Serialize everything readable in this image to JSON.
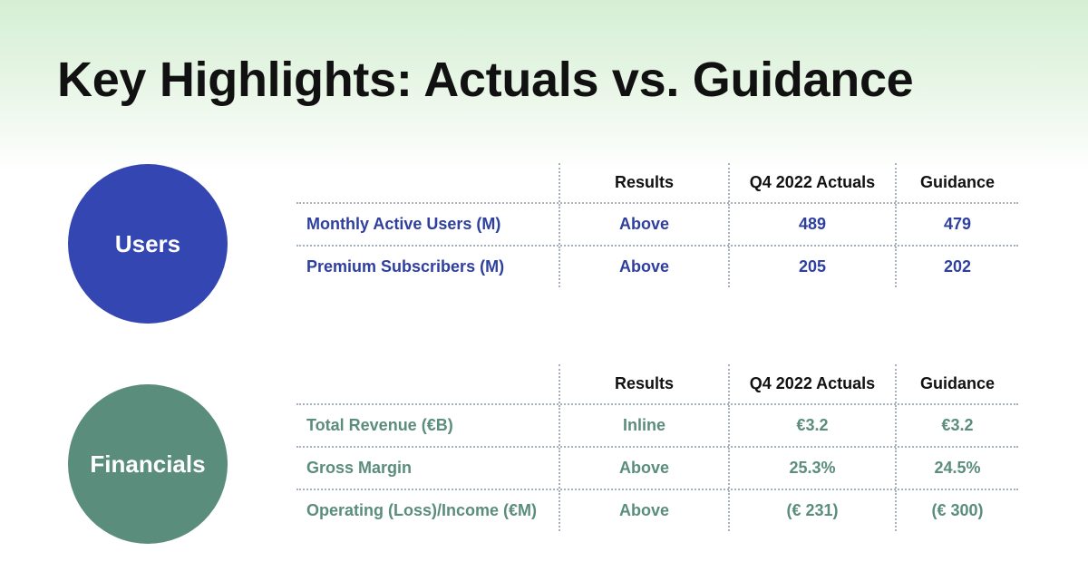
{
  "slide": {
    "title": "Key Highlights: Actuals vs. Guidance"
  },
  "colors": {
    "users_accent": "#3346b2",
    "financials_accent": "#5a8d7c",
    "header_band": "#d5efd4"
  },
  "columns": [
    "Results",
    "Q4 2022 Actuals",
    "Guidance"
  ],
  "users": {
    "label": "Users",
    "rows": [
      {
        "metric": "Monthly Active Users (M)",
        "result": "Above",
        "actual": "489",
        "guidance": "479"
      },
      {
        "metric": "Premium Subscribers (M)",
        "result": "Above",
        "actual": "205",
        "guidance": "202"
      }
    ]
  },
  "financials": {
    "label": "Financials",
    "rows": [
      {
        "metric": "Total Revenue (€B)",
        "result": "Inline",
        "actual": "€3.2",
        "guidance": "€3.2"
      },
      {
        "metric": "Gross Margin",
        "result": "Above",
        "actual": "25.3%",
        "guidance": "24.5%"
      },
      {
        "metric": "Operating (Loss)/Income (€M)",
        "result": "Above",
        "actual": "(€ 231)",
        "guidance": "(€ 300)"
      }
    ]
  }
}
